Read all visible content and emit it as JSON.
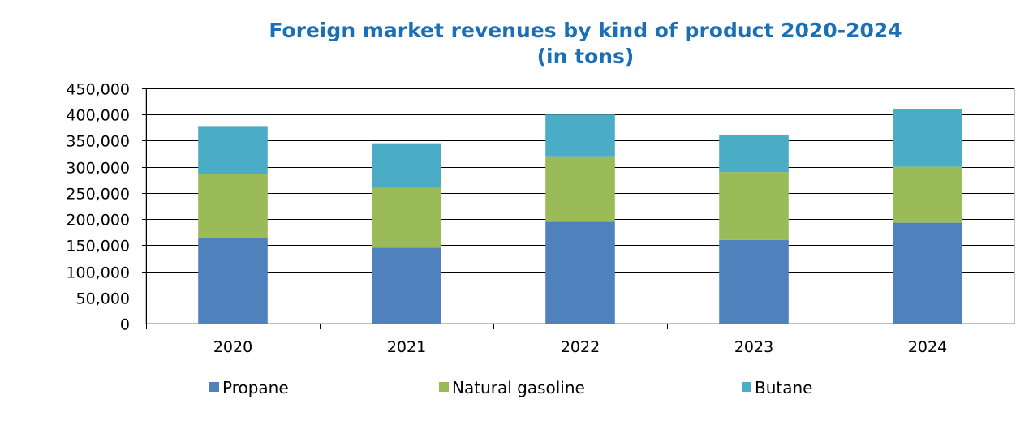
{
  "chart_data": {
    "type": "bar",
    "stacked": true,
    "title": "Foreign market revenues by kind of product 2020-2024",
    "subtitle": "(in tons)",
    "categories": [
      "2020",
      "2021",
      "2022",
      "2023",
      "2024"
    ],
    "series": [
      {
        "name": "Propane",
        "color": "#4f81bd",
        "values": [
          165000,
          145000,
          195000,
          160000,
          193000
        ]
      },
      {
        "name": "Natural gasoline",
        "color": "#9bbb59",
        "values": [
          122000,
          115000,
          125000,
          130000,
          107000
        ]
      },
      {
        "name": "Butane",
        "color": "#4bacc6",
        "values": [
          91000,
          85000,
          80000,
          70000,
          111000
        ]
      }
    ],
    "ylim": [
      0,
      450000
    ],
    "yticks": [
      0,
      50000,
      100000,
      150000,
      200000,
      250000,
      300000,
      350000,
      400000,
      450000
    ],
    "ytick_labels": [
      "0",
      "50,000",
      "100,000",
      "150,000",
      "200,000",
      "250,000",
      "300,000",
      "350,000",
      "400,000",
      "450,000"
    ],
    "grid": true,
    "legend_position": "bottom",
    "xlabel": "",
    "ylabel": ""
  }
}
